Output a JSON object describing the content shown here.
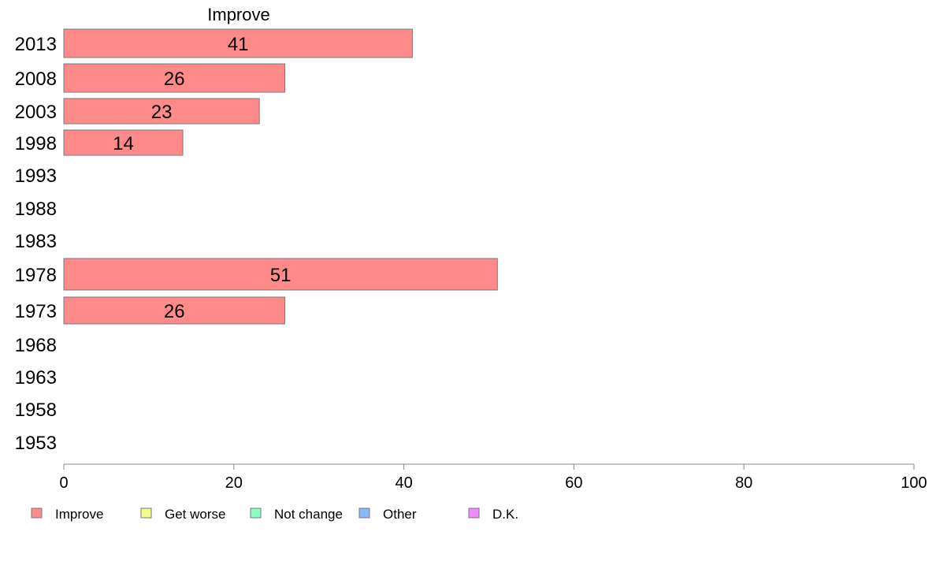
{
  "chart_data": {
    "type": "bar",
    "orientation": "horizontal",
    "title": "",
    "series_title": "Improve",
    "xlabel": "",
    "ylabel": "",
    "xlim": [
      0,
      100
    ],
    "x_ticks": [
      0,
      20,
      40,
      60,
      80,
      100
    ],
    "grid": false,
    "legend_position": "bottom",
    "categories": [
      "2013",
      "2008",
      "2003",
      "1998",
      "1993",
      "1988",
      "1983",
      "1978",
      "1973",
      "1968",
      "1963",
      "1958",
      "1953"
    ],
    "series": [
      {
        "name": "Improve",
        "color": "#ff8a8a",
        "values": [
          41,
          26,
          23,
          14,
          null,
          null,
          null,
          51,
          26,
          null,
          null,
          null,
          null
        ],
        "labels": [
          "41",
          "26",
          "23",
          "14",
          "",
          "",
          "",
          "51",
          "26",
          "",
          "",
          "",
          ""
        ]
      }
    ],
    "legend": [
      {
        "label": "Improve",
        "color": "#ff8a8a"
      },
      {
        "label": "Get worse",
        "color": "#f2ff8a"
      },
      {
        "label": "Not change",
        "color": "#8affc0"
      },
      {
        "label": "Other",
        "color": "#8ab8ff"
      },
      {
        "label": "D.K.",
        "color": "#f08aff"
      }
    ]
  }
}
